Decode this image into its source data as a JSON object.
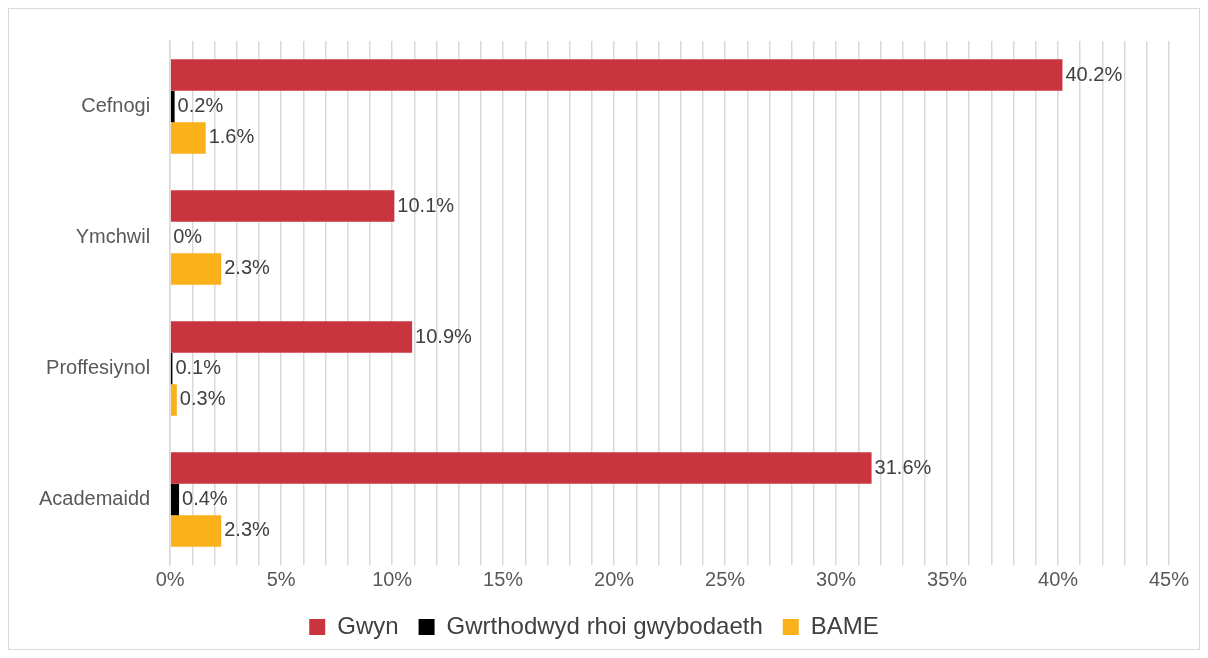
{
  "chart_data": {
    "type": "bar",
    "orientation": "horizontal",
    "categories": [
      "Cefnogi",
      "Ymchwil",
      "Proffesiynol",
      "Academaidd"
    ],
    "series": [
      {
        "name": "Gwyn",
        "color": "#c9343f",
        "values": [
          40.2,
          10.1,
          10.9,
          31.6
        ],
        "value_labels": [
          "40.2%",
          "10.1%",
          "10.9%",
          "31.6%"
        ]
      },
      {
        "name": "Gwrthodwyd rhoi gwybodaeth",
        "color": "#000000",
        "values": [
          0.2,
          0,
          0.1,
          0.4
        ],
        "value_labels": [
          "0.2%",
          "0%",
          "0.1%",
          "0.4%"
        ]
      },
      {
        "name": "BAME",
        "color": "#fbb21a",
        "values": [
          1.6,
          2.3,
          0.3,
          2.3
        ],
        "value_labels": [
          "1.6%",
          "2.3%",
          "0.3%",
          "2.3%"
        ]
      }
    ],
    "xlim": [
      0,
      45
    ],
    "xticks": [
      {
        "value": 0,
        "label": "0%"
      },
      {
        "value": 1,
        "label": null
      },
      {
        "value": 2,
        "label": null
      },
      {
        "value": 3,
        "label": null
      },
      {
        "value": 4,
        "label": null
      },
      {
        "value": 5,
        "label": "5%"
      },
      {
        "value": 6,
        "label": null
      },
      {
        "value": 7,
        "label": null
      },
      {
        "value": 8,
        "label": null
      },
      {
        "value": 9,
        "label": null
      },
      {
        "value": 10,
        "label": "10%"
      },
      {
        "value": 11,
        "label": null
      },
      {
        "value": 12,
        "label": null
      },
      {
        "value": 13,
        "label": null
      },
      {
        "value": 14,
        "label": null
      },
      {
        "value": 15,
        "label": "15%"
      },
      {
        "value": 16,
        "label": null
      },
      {
        "value": 17,
        "label": null
      },
      {
        "value": 18,
        "label": null
      },
      {
        "value": 19,
        "label": null
      },
      {
        "value": 20,
        "label": "20%"
      },
      {
        "value": 21,
        "label": null
      },
      {
        "value": 22,
        "label": null
      },
      {
        "value": 23,
        "label": null
      },
      {
        "value": 24,
        "label": null
      },
      {
        "value": 25,
        "label": "25%"
      },
      {
        "value": 26,
        "label": null
      },
      {
        "value": 27,
        "label": null
      },
      {
        "value": 28,
        "label": null
      },
      {
        "value": 29,
        "label": null
      },
      {
        "value": 30,
        "label": "30%"
      },
      {
        "value": 31,
        "label": null
      },
      {
        "value": 32,
        "label": null
      },
      {
        "value": 33,
        "label": null
      },
      {
        "value": 34,
        "label": null
      },
      {
        "value": 35,
        "label": "35%"
      },
      {
        "value": 36,
        "label": null
      },
      {
        "value": 37,
        "label": null
      },
      {
        "value": 38,
        "label": null
      },
      {
        "value": 39,
        "label": null
      },
      {
        "value": 40,
        "label": "40%"
      },
      {
        "value": 41,
        "label": null
      },
      {
        "value": 42,
        "label": null
      },
      {
        "value": 43,
        "label": null
      },
      {
        "value": 44,
        "label": null
      },
      {
        "value": 45,
        "label": "45%"
      }
    ],
    "grid": "x",
    "legend": "bottom"
  }
}
